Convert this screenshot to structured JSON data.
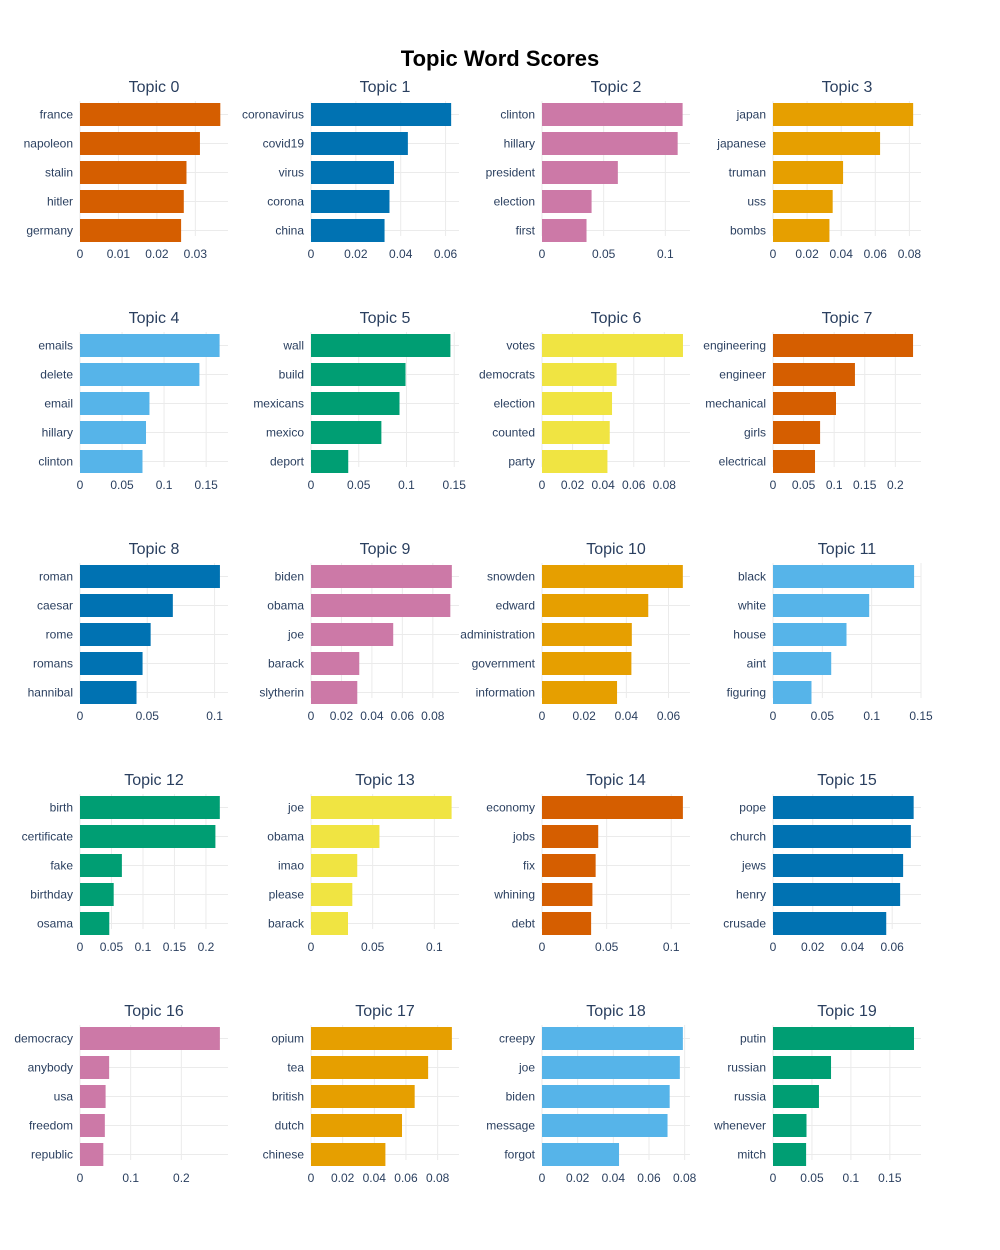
{
  "chart_data": {
    "type": "bar",
    "title": "Topic Word Scores",
    "orientation": "horizontal",
    "grid": true,
    "panels": [
      {
        "title": "Topic 0",
        "color": "#D55E00",
        "words": [
          "france",
          "napoleon",
          "stalin",
          "hitler",
          "germany"
        ],
        "values": [
          0.0365,
          0.0312,
          0.0277,
          0.027,
          0.0263
        ],
        "ticks": [
          0,
          0.01,
          0.02,
          0.03
        ],
        "tick_labels": [
          "0",
          "0.01",
          "0.02",
          "0.03"
        ],
        "xlim": [
          0,
          0.0385
        ]
      },
      {
        "title": "Topic 1",
        "color": "#0072B2",
        "words": [
          "coronavirus",
          "covid19",
          "virus",
          "corona",
          "china"
        ],
        "values": [
          0.0625,
          0.0432,
          0.037,
          0.035,
          0.0328
        ],
        "ticks": [
          0,
          0.02,
          0.04,
          0.06
        ],
        "tick_labels": [
          "0",
          "0.02",
          "0.04",
          "0.06"
        ],
        "xlim": [
          0,
          0.066
        ]
      },
      {
        "title": "Topic 2",
        "color": "#CC79A7",
        "words": [
          "clinton",
          "hillary",
          "president",
          "election",
          "first"
        ],
        "values": [
          0.114,
          0.11,
          0.0615,
          0.0402,
          0.0361
        ],
        "ticks": [
          0,
          0.05,
          0.1
        ],
        "tick_labels": [
          "0",
          "0.05",
          "0.1"
        ],
        "xlim": [
          0,
          0.12
        ]
      },
      {
        "title": "Topic 3",
        "color": "#E69F00",
        "words": [
          "japan",
          "japanese",
          "truman",
          "uss",
          "bombs"
        ],
        "values": [
          0.0822,
          0.0628,
          0.0411,
          0.035,
          0.0331
        ],
        "ticks": [
          0,
          0.02,
          0.04,
          0.06,
          0.08
        ],
        "tick_labels": [
          "0",
          "0.02",
          "0.04",
          "0.06",
          "0.08"
        ],
        "xlim": [
          0,
          0.0868
        ]
      },
      {
        "title": "Topic 4",
        "color": "#56B4E9",
        "words": [
          "emails",
          "delete",
          "email",
          "hillary",
          "clinton"
        ],
        "values": [
          0.166,
          0.142,
          0.0826,
          0.0785,
          0.0743
        ],
        "ticks": [
          0,
          0.05,
          0.1,
          0.15
        ],
        "tick_labels": [
          "0",
          "0.05",
          "0.1",
          "0.15"
        ],
        "xlim": [
          0,
          0.176
        ]
      },
      {
        "title": "Topic 5",
        "color": "#009E73",
        "words": [
          "wall",
          "build",
          "mexicans",
          "mexico",
          "deport"
        ],
        "values": [
          0.146,
          0.099,
          0.0927,
          0.0737,
          0.039
        ],
        "ticks": [
          0,
          0.05,
          0.1,
          0.15
        ],
        "tick_labels": [
          "0",
          "0.05",
          "0.1",
          "0.15"
        ],
        "xlim": [
          0,
          0.155
        ]
      },
      {
        "title": "Topic 6",
        "color": "#F0E442",
        "words": [
          "votes",
          "democrats",
          "election",
          "counted",
          "party"
        ],
        "values": [
          0.0922,
          0.0488,
          0.0458,
          0.0443,
          0.0428
        ],
        "ticks": [
          0,
          0.02,
          0.04,
          0.06,
          0.08
        ],
        "tick_labels": [
          "0",
          "0.02",
          "0.04",
          "0.06",
          "0.08"
        ],
        "xlim": [
          0,
          0.0968
        ]
      },
      {
        "title": "Topic 7",
        "color": "#D55E00",
        "words": [
          "engineering",
          "engineer",
          "mechanical",
          "girls",
          "electrical"
        ],
        "values": [
          0.229,
          0.134,
          0.103,
          0.077,
          0.0687
        ],
        "ticks": [
          0,
          0.05,
          0.1,
          0.15,
          0.2
        ],
        "tick_labels": [
          "0",
          "0.05",
          "0.1",
          "0.15",
          "0.2"
        ],
        "xlim": [
          0,
          0.242
        ]
      },
      {
        "title": "Topic 8",
        "color": "#0072B2",
        "words": [
          "roman",
          "caesar",
          "rome",
          "romans",
          "hannibal"
        ],
        "values": [
          0.104,
          0.069,
          0.0525,
          0.0465,
          0.042
        ],
        "ticks": [
          0,
          0.05,
          0.1
        ],
        "tick_labels": [
          "0",
          "0.05",
          "0.1"
        ],
        "xlim": [
          0,
          0.11
        ]
      },
      {
        "title": "Topic 9",
        "color": "#CC79A7",
        "words": [
          "biden",
          "obama",
          "joe",
          "barack",
          "slytherin"
        ],
        "values": [
          0.0925,
          0.0915,
          0.054,
          0.0317,
          0.0304
        ],
        "ticks": [
          0,
          0.02,
          0.04,
          0.06,
          0.08
        ],
        "tick_labels": [
          "0",
          "0.02",
          "0.04",
          "0.06",
          "0.08"
        ],
        "xlim": [
          0,
          0.0972
        ]
      },
      {
        "title": "Topic 10",
        "color": "#E69F00",
        "words": [
          "snowden",
          "edward",
          "administration",
          "government",
          "information"
        ],
        "values": [
          0.0668,
          0.0504,
          0.0426,
          0.0424,
          0.0356
        ],
        "ticks": [
          0,
          0.02,
          0.04,
          0.06
        ],
        "tick_labels": [
          "0",
          "0.02",
          "0.04",
          "0.06"
        ],
        "xlim": [
          0,
          0.0702
        ]
      },
      {
        "title": "Topic 11",
        "color": "#56B4E9",
        "words": [
          "black",
          "white",
          "house",
          "aint",
          "figuring"
        ],
        "values": [
          0.143,
          0.0975,
          0.0745,
          0.059,
          0.039
        ],
        "ticks": [
          0,
          0.05,
          0.1,
          0.15
        ],
        "tick_labels": [
          "0",
          "0.05",
          "0.1",
          "0.15"
        ],
        "xlim": [
          0,
          0.15
        ]
      },
      {
        "title": "Topic 12",
        "color": "#009E73",
        "words": [
          "birth",
          "certificate",
          "fake",
          "birthday",
          "osama"
        ],
        "values": [
          0.222,
          0.215,
          0.0665,
          0.0535,
          0.0465
        ],
        "ticks": [
          0,
          0.05,
          0.1,
          0.15,
          0.2
        ],
        "tick_labels": [
          "0",
          "0.05",
          "0.1",
          "0.15",
          "0.2"
        ],
        "xlim": [
          0,
          0.235
        ]
      },
      {
        "title": "Topic 13",
        "color": "#F0E442",
        "words": [
          "joe",
          "obama",
          "imao",
          "please",
          "barack"
        ],
        "values": [
          0.114,
          0.0555,
          0.0375,
          0.0335,
          0.03
        ],
        "ticks": [
          0,
          0.05,
          0.1
        ],
        "tick_labels": [
          "0",
          "0.05",
          "0.1"
        ],
        "xlim": [
          0,
          0.12
        ]
      },
      {
        "title": "Topic 14",
        "color": "#D55E00",
        "words": [
          "economy",
          "jobs",
          "fix",
          "whining",
          "debt"
        ],
        "values": [
          0.109,
          0.0435,
          0.0415,
          0.039,
          0.038
        ],
        "ticks": [
          0,
          0.05,
          0.1
        ],
        "tick_labels": [
          "0",
          "0.05",
          "0.1"
        ],
        "xlim": [
          0,
          0.1145
        ]
      },
      {
        "title": "Topic 15",
        "color": "#0072B2",
        "words": [
          "pope",
          "church",
          "jews",
          "henry",
          "crusade"
        ],
        "values": [
          0.0708,
          0.0694,
          0.0655,
          0.064,
          0.057
        ],
        "ticks": [
          0,
          0.02,
          0.04,
          0.06
        ],
        "tick_labels": [
          "0",
          "0.02",
          "0.04",
          "0.06"
        ],
        "xlim": [
          0,
          0.0745
        ]
      },
      {
        "title": "Topic 16",
        "color": "#CC79A7",
        "words": [
          "democracy",
          "anybody",
          "usa",
          "freedom",
          "republic"
        ],
        "values": [
          0.276,
          0.0575,
          0.0505,
          0.049,
          0.046
        ],
        "ticks": [
          0,
          0.1,
          0.2
        ],
        "tick_labels": [
          "0",
          "0.1",
          "0.2"
        ],
        "xlim": [
          0,
          0.292
        ]
      },
      {
        "title": "Topic 17",
        "color": "#E69F00",
        "words": [
          "opium",
          "tea",
          "british",
          "dutch",
          "chinese"
        ],
        "values": [
          0.089,
          0.074,
          0.0655,
          0.0575,
          0.047
        ],
        "ticks": [
          0,
          0.02,
          0.04,
          0.06,
          0.08
        ],
        "tick_labels": [
          "0",
          "0.02",
          "0.04",
          "0.06",
          "0.08"
        ],
        "xlim": [
          0,
          0.0935
        ]
      },
      {
        "title": "Topic 18",
        "color": "#56B4E9",
        "words": [
          "creepy",
          "joe",
          "biden",
          "message",
          "forgot"
        ],
        "values": [
          0.079,
          0.0773,
          0.0716,
          0.0704,
          0.0432
        ],
        "ticks": [
          0,
          0.02,
          0.04,
          0.06,
          0.08
        ],
        "tick_labels": [
          "0",
          "0.02",
          "0.04",
          "0.06",
          "0.08"
        ],
        "xlim": [
          0,
          0.083
        ]
      },
      {
        "title": "Topic 19",
        "color": "#009E73",
        "words": [
          "putin",
          "russian",
          "russia",
          "whenever",
          "mitch"
        ],
        "values": [
          0.181,
          0.0745,
          0.059,
          0.043,
          0.0425
        ],
        "ticks": [
          0,
          0.05,
          0.1,
          0.15
        ],
        "tick_labels": [
          "0",
          "0.05",
          "0.1",
          "0.15"
        ],
        "xlim": [
          0,
          0.19
        ]
      }
    ]
  }
}
